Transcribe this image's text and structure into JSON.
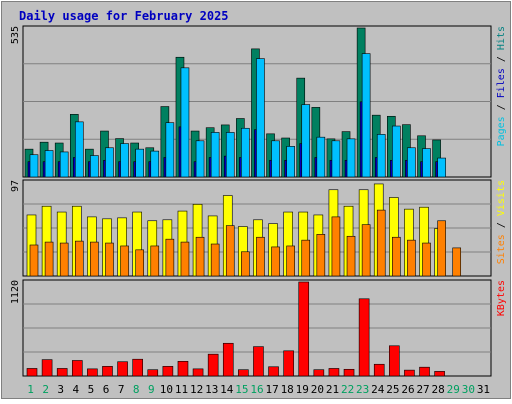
{
  "chart_data": [
    {
      "type": "bar",
      "title": "Daily usage for February 2025",
      "ylabel_top": "535",
      "y_right_label_parts": [
        {
          "text": "Pages",
          "color": "#00c0e0"
        },
        {
          "text": " / ",
          "color": "#000000"
        },
        {
          "text": "Files",
          "color": "#0000c0"
        },
        {
          "text": " / ",
          "color": "#000000"
        },
        {
          "text": "Hits",
          "color": "#008080"
        }
      ],
      "categories": [
        "1",
        "2",
        "3",
        "4",
        "5",
        "6",
        "7",
        "8",
        "9",
        "10",
        "11",
        "12",
        "13",
        "14",
        "15",
        "16",
        "17",
        "18",
        "19",
        "20",
        "21",
        "22",
        "23",
        "24",
        "25",
        "26",
        "27",
        "28",
        "29",
        "30",
        "31"
      ],
      "ylim": [
        0,
        535
      ],
      "series": [
        {
          "name": "Hits",
          "color": "#008060",
          "values": [
            100,
            125,
            122,
            225,
            100,
            165,
            138,
            122,
            105,
            253,
            430,
            165,
            177,
            187,
            210,
            460,
            155,
            140,
            355,
            250,
            137,
            163,
            535,
            222,
            218,
            188,
            148,
            133,
            0,
            0,
            0
          ]
        },
        {
          "name": "Files",
          "color": "#0000c0",
          "values": [
            55,
            55,
            55,
            70,
            55,
            60,
            55,
            55,
            55,
            70,
            180,
            55,
            70,
            75,
            70,
            170,
            60,
            60,
            120,
            70,
            60,
            60,
            270,
            70,
            60,
            60,
            55,
            55,
            0,
            0,
            0
          ]
        },
        {
          "name": "Pages",
          "color": "#00c0ff",
          "values": [
            80,
            95,
            90,
            198,
            77,
            105,
            120,
            100,
            93,
            195,
            392,
            130,
            160,
            160,
            175,
            425,
            130,
            110,
            260,
            143,
            130,
            137,
            443,
            153,
            183,
            105,
            102,
            68,
            0,
            0,
            0
          ]
        }
      ]
    },
    {
      "type": "bar",
      "ylabel_top": "97",
      "y_right_label_parts": [
        {
          "text": "Sites",
          "color": "#ff8000"
        },
        {
          "text": " / ",
          "color": "#000000"
        },
        {
          "text": "Visits",
          "color": "#ffff00"
        }
      ],
      "categories": [
        "1",
        "2",
        "3",
        "4",
        "5",
        "6",
        "7",
        "8",
        "9",
        "10",
        "11",
        "12",
        "13",
        "14",
        "15",
        "16",
        "17",
        "18",
        "19",
        "20",
        "21",
        "22",
        "23",
        "24",
        "25",
        "26",
        "27",
        "28",
        "29",
        "30",
        "31"
      ],
      "ylim": [
        0,
        97
      ],
      "series": [
        {
          "name": "Visits",
          "color": "#ffff00",
          "values": [
            63,
            72,
            66,
            72,
            61,
            59,
            60,
            66,
            57,
            58,
            67,
            74,
            62,
            83,
            51,
            58,
            54,
            66,
            66,
            63,
            89,
            72,
            89,
            95,
            81,
            69,
            71,
            49,
            0,
            0,
            0
          ]
        },
        {
          "name": "Sites",
          "color": "#ff8000",
          "values": [
            32,
            35,
            34,
            36,
            35,
            34,
            31,
            27,
            31,
            38,
            35,
            40,
            33,
            52,
            25,
            40,
            30,
            31,
            37,
            43,
            61,
            41,
            53,
            68,
            40,
            37,
            34,
            57,
            29,
            0,
            0
          ]
        }
      ]
    },
    {
      "type": "bar",
      "ylabel_top": "1120",
      "y_right_label_parts": [
        {
          "text": "KBytes",
          "color": "#ff0000"
        }
      ],
      "categories": [
        "1",
        "2",
        "3",
        "4",
        "5",
        "6",
        "7",
        "8",
        "9",
        "10",
        "11",
        "12",
        "13",
        "14",
        "15",
        "16",
        "17",
        "18",
        "19",
        "20",
        "21",
        "22",
        "23",
        "24",
        "25",
        "26",
        "27",
        "28",
        "29",
        "30",
        "31"
      ],
      "ylim": [
        0,
        1120
      ],
      "series": [
        {
          "name": "KBytes",
          "color": "#ff0000",
          "values": [
            90,
            195,
            90,
            185,
            85,
            115,
            170,
            200,
            75,
            115,
            175,
            85,
            260,
            390,
            75,
            350,
            110,
            300,
            1120,
            75,
            90,
            80,
            920,
            140,
            360,
            70,
            105,
            55,
            0,
            0,
            0
          ]
        }
      ]
    }
  ],
  "weekend_days": [
    "1",
    "2",
    "8",
    "9",
    "15",
    "16",
    "22",
    "23",
    "29",
    "30"
  ],
  "colors": {
    "background": "#c0c0c0",
    "plot_bg": "#c0c0c0",
    "grid": "#808080",
    "title": "#0000c0",
    "weekday_label": "#000000",
    "weekend_label": "#00a060"
  }
}
